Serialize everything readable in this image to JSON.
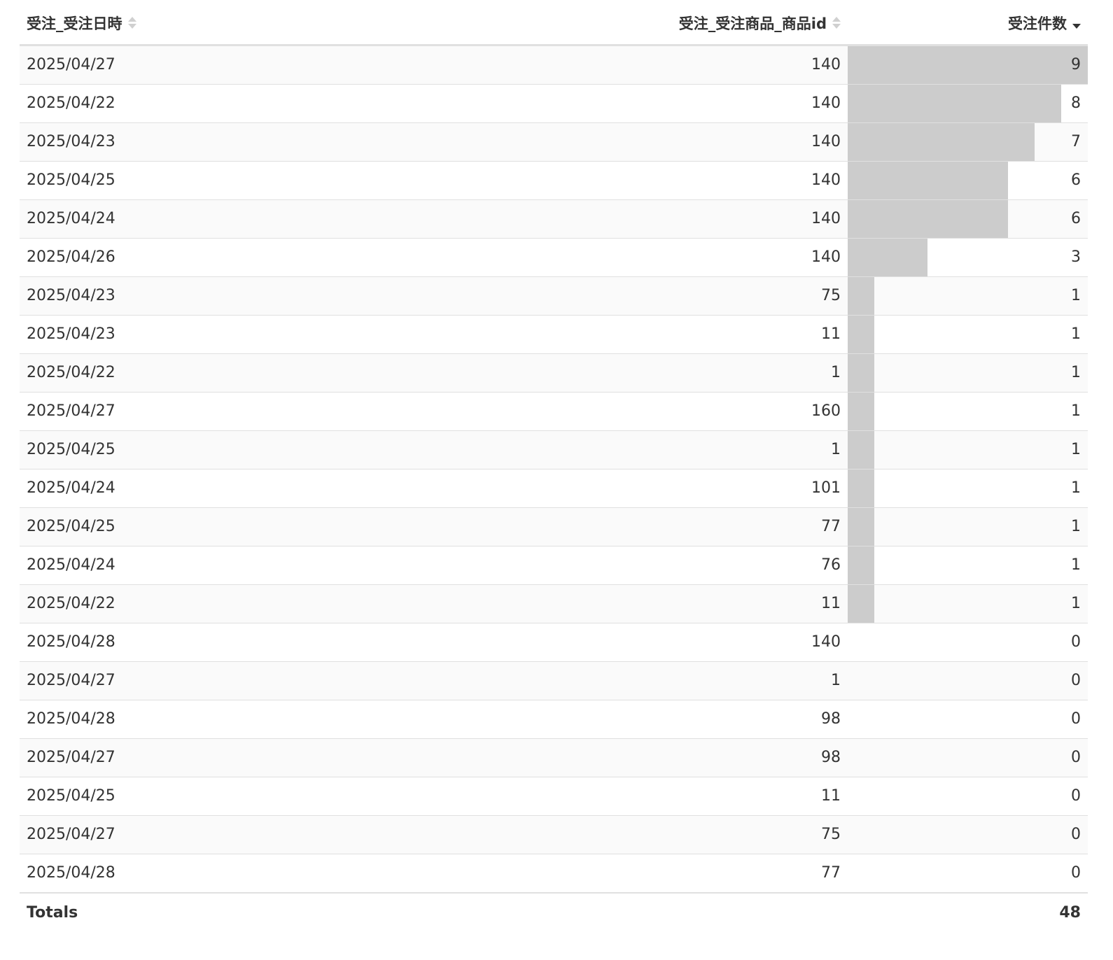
{
  "table": {
    "columns": [
      {
        "key": "date",
        "label": "受注_受注日時",
        "sort": "sortable"
      },
      {
        "key": "product_id",
        "label": "受注_受注商品_商品id",
        "sort": "sortable"
      },
      {
        "key": "count",
        "label": "受注件数",
        "sort": "descending"
      }
    ],
    "count_bar_max": 9,
    "rows": [
      {
        "date": "2025/04/27",
        "product_id": "140",
        "count": 9
      },
      {
        "date": "2025/04/22",
        "product_id": "140",
        "count": 8
      },
      {
        "date": "2025/04/23",
        "product_id": "140",
        "count": 7
      },
      {
        "date": "2025/04/25",
        "product_id": "140",
        "count": 6
      },
      {
        "date": "2025/04/24",
        "product_id": "140",
        "count": 6
      },
      {
        "date": "2025/04/26",
        "product_id": "140",
        "count": 3
      },
      {
        "date": "2025/04/23",
        "product_id": "75",
        "count": 1
      },
      {
        "date": "2025/04/23",
        "product_id": "11",
        "count": 1
      },
      {
        "date": "2025/04/22",
        "product_id": "1",
        "count": 1
      },
      {
        "date": "2025/04/27",
        "product_id": "160",
        "count": 1
      },
      {
        "date": "2025/04/25",
        "product_id": "1",
        "count": 1
      },
      {
        "date": "2025/04/24",
        "product_id": "101",
        "count": 1
      },
      {
        "date": "2025/04/25",
        "product_id": "77",
        "count": 1
      },
      {
        "date": "2025/04/24",
        "product_id": "76",
        "count": 1
      },
      {
        "date": "2025/04/22",
        "product_id": "11",
        "count": 1
      },
      {
        "date": "2025/04/28",
        "product_id": "140",
        "count": 0
      },
      {
        "date": "2025/04/27",
        "product_id": "1",
        "count": 0
      },
      {
        "date": "2025/04/28",
        "product_id": "98",
        "count": 0
      },
      {
        "date": "2025/04/27",
        "product_id": "98",
        "count": 0
      },
      {
        "date": "2025/04/25",
        "product_id": "11",
        "count": 0
      },
      {
        "date": "2025/04/27",
        "product_id": "75",
        "count": 0
      },
      {
        "date": "2025/04/28",
        "product_id": "77",
        "count": 0
      }
    ],
    "totals": {
      "label": "Totals",
      "count": "48"
    }
  }
}
